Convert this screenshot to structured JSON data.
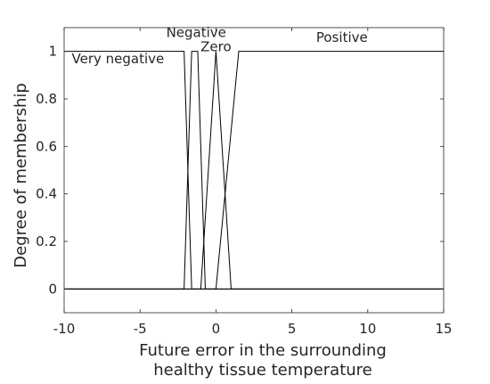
{
  "chart_data": {
    "type": "line",
    "title": "",
    "xlabel": [
      "Future error in the surrounding",
      "healthy tissue temperature"
    ],
    "ylabel": "Degree of membership",
    "xlim": [
      -10,
      15
    ],
    "ylim": [
      -0.1,
      1.1
    ],
    "xticks": [
      -10,
      -5,
      0,
      5,
      10,
      15
    ],
    "xtick_labels": [
      "-10",
      "-5",
      "0",
      "5",
      "10",
      "15"
    ],
    "yticks": [
      0,
      0.2,
      0.4,
      0.6,
      0.8,
      1
    ],
    "ytick_labels": [
      "0",
      "0.2",
      "0.4",
      "0.6",
      "0.8",
      "1"
    ],
    "grid": false,
    "line_color": "#000000",
    "series": [
      {
        "name": "Very negative",
        "x": [
          -10,
          -2.1,
          -1.6,
          15
        ],
        "y": [
          1,
          1,
          0,
          0
        ]
      },
      {
        "name": "Negative",
        "x": [
          -10,
          -2.1,
          -1.6,
          -1.2,
          -0.7,
          15
        ],
        "y": [
          0,
          0,
          1,
          1,
          0,
          0
        ]
      },
      {
        "name": "Zero",
        "x": [
          -10,
          -1.0,
          0,
          1.0,
          15
        ],
        "y": [
          0,
          0,
          1,
          0,
          0
        ]
      },
      {
        "name": "Positive",
        "x": [
          -10,
          0,
          1.5,
          15
        ],
        "y": [
          0,
          0,
          1,
          1
        ]
      }
    ],
    "annotations": [
      {
        "text": "Very negative",
        "x": -9.5,
        "y": 0.95
      },
      {
        "text": "Negative",
        "x": -1.3,
        "y": 1.06
      },
      {
        "text": "Zero",
        "x": 0,
        "y": 1.0
      },
      {
        "text": "Positive",
        "x": 8.3,
        "y": 1.04
      }
    ]
  }
}
